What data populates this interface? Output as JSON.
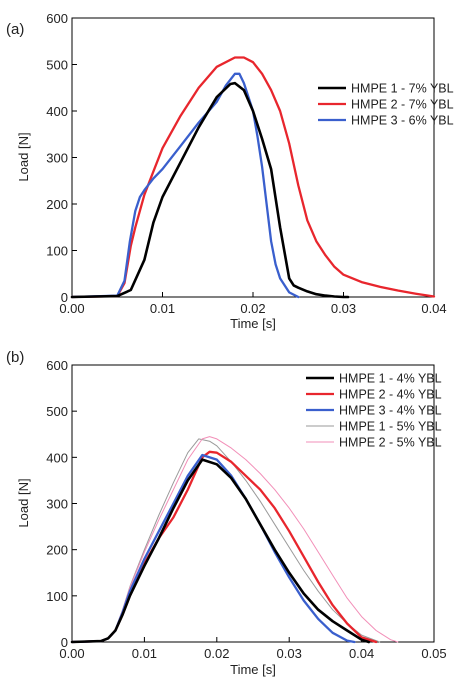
{
  "chart_data": [
    {
      "type": "line",
      "panel_label": "(a)",
      "xlabel": "Time [s]",
      "ylabel": "Load [N]",
      "xlim": [
        0,
        0.04
      ],
      "ylim": [
        0,
        600
      ],
      "xticks": [
        "0.00",
        "0.01",
        "0.02",
        "0.03",
        "0.04"
      ],
      "yticks": [
        "0",
        "100",
        "200",
        "300",
        "400",
        "500",
        "600"
      ],
      "grid": false,
      "legend_position": "right",
      "series": [
        {
          "name": "HMPE 1 - 7% YBL",
          "color": "#000000",
          "width": 2.6,
          "x": [
            0,
            0.005,
            0.0065,
            0.008,
            0.009,
            0.01,
            0.012,
            0.014,
            0.016,
            0.0175,
            0.018,
            0.019,
            0.02,
            0.021,
            0.022,
            0.023,
            0.024,
            0.0245,
            0.025,
            0.026,
            0.027,
            0.028,
            0.029,
            0.03,
            0.0305
          ],
          "y": [
            0,
            2,
            15,
            80,
            160,
            215,
            290,
            365,
            430,
            458,
            460,
            445,
            400,
            340,
            275,
            150,
            40,
            25,
            20,
            12,
            6,
            3,
            1,
            0,
            0
          ]
        },
        {
          "name": "HMPE 2 - 7% YBL",
          "color": "#e8262d",
          "width": 2.3,
          "x": [
            0,
            0.005,
            0.0058,
            0.0065,
            0.007,
            0.008,
            0.009,
            0.01,
            0.012,
            0.014,
            0.016,
            0.018,
            0.019,
            0.02,
            0.021,
            0.022,
            0.023,
            0.024,
            0.025,
            0.026,
            0.027,
            0.028,
            0.029,
            0.03,
            0.032,
            0.034,
            0.036,
            0.038,
            0.04
          ],
          "y": [
            0,
            2,
            30,
            110,
            150,
            220,
            270,
            320,
            390,
            450,
            495,
            515,
            515,
            505,
            480,
            445,
            400,
            330,
            240,
            165,
            120,
            90,
            65,
            48,
            32,
            22,
            14,
            7,
            1
          ]
        },
        {
          "name": "HMPE 3 - 6% YBL",
          "color": "#3a5fcd",
          "width": 2.3,
          "x": [
            0,
            0.005,
            0.0058,
            0.0064,
            0.007,
            0.0075,
            0.008,
            0.009,
            0.01,
            0.012,
            0.014,
            0.016,
            0.017,
            0.018,
            0.0185,
            0.019,
            0.02,
            0.0205,
            0.021,
            0.0215,
            0.022,
            0.0225,
            0.023,
            0.024,
            0.025
          ],
          "y": [
            0,
            3,
            35,
            120,
            185,
            215,
            230,
            255,
            275,
            325,
            375,
            420,
            455,
            480,
            480,
            460,
            400,
            345,
            280,
            200,
            120,
            70,
            40,
            10,
            0
          ]
        }
      ]
    },
    {
      "type": "line",
      "panel_label": "(b)",
      "xlabel": "Time [s]",
      "ylabel": "Load [N]",
      "xlim": [
        0,
        0.05
      ],
      "ylim": [
        0,
        600
      ],
      "xticks": [
        "0.00",
        "0.01",
        "0.02",
        "0.03",
        "0.04",
        "0.05"
      ],
      "yticks": [
        "0",
        "100",
        "200",
        "300",
        "400",
        "500",
        "600"
      ],
      "grid": false,
      "legend_position": "top-right",
      "series": [
        {
          "name": "HMPE 1 - 4% YBL",
          "color": "#000000",
          "width": 2.6,
          "x": [
            0,
            0.004,
            0.005,
            0.006,
            0.007,
            0.008,
            0.01,
            0.012,
            0.014,
            0.016,
            0.018,
            0.02,
            0.022,
            0.024,
            0.026,
            0.028,
            0.03,
            0.032,
            0.034,
            0.036,
            0.038,
            0.04,
            0.041
          ],
          "y": [
            0,
            2,
            8,
            25,
            60,
            100,
            165,
            225,
            290,
            350,
            395,
            385,
            355,
            310,
            255,
            200,
            150,
            105,
            70,
            45,
            25,
            5,
            0
          ]
        },
        {
          "name": "HMPE 2 - 4% YBL",
          "color": "#e8262d",
          "width": 2.3,
          "x": [
            0,
            0.004,
            0.005,
            0.006,
            0.007,
            0.008,
            0.01,
            0.012,
            0.014,
            0.016,
            0.018,
            0.019,
            0.02,
            0.022,
            0.024,
            0.026,
            0.028,
            0.03,
            0.032,
            0.034,
            0.036,
            0.038,
            0.04,
            0.042
          ],
          "y": [
            0,
            2,
            8,
            25,
            60,
            100,
            170,
            225,
            270,
            330,
            400,
            412,
            410,
            390,
            360,
            330,
            290,
            240,
            185,
            130,
            80,
            40,
            10,
            0
          ]
        },
        {
          "name": "HMPE 3 - 4% YBL",
          "color": "#3a5fcd",
          "width": 2.3,
          "x": [
            0,
            0.004,
            0.005,
            0.006,
            0.007,
            0.008,
            0.01,
            0.012,
            0.014,
            0.016,
            0.018,
            0.02,
            0.022,
            0.024,
            0.026,
            0.028,
            0.03,
            0.032,
            0.034,
            0.036,
            0.038,
            0.039
          ],
          "y": [
            0,
            2,
            8,
            25,
            65,
            110,
            180,
            240,
            300,
            360,
            405,
            395,
            360,
            310,
            255,
            195,
            140,
            90,
            50,
            20,
            3,
            0
          ]
        },
        {
          "name": "HMPE 1 - 5% YBL",
          "color": "#9a9a9a",
          "width": 1,
          "x": [
            0,
            0.004,
            0.005,
            0.006,
            0.007,
            0.008,
            0.01,
            0.012,
            0.014,
            0.016,
            0.0175,
            0.019,
            0.02,
            0.022,
            0.024,
            0.026,
            0.028,
            0.03,
            0.032,
            0.034,
            0.036,
            0.038,
            0.04,
            0.0425
          ],
          "y": [
            0,
            2,
            8,
            28,
            70,
            120,
            200,
            275,
            345,
            410,
            440,
            435,
            425,
            390,
            350,
            305,
            255,
            205,
            155,
            110,
            70,
            40,
            15,
            0
          ]
        },
        {
          "name": "HMPE 2 - 5% YBL",
          "color": "#f28fb8",
          "width": 1,
          "x": [
            0,
            0.004,
            0.005,
            0.006,
            0.007,
            0.008,
            0.01,
            0.012,
            0.014,
            0.016,
            0.018,
            0.019,
            0.02,
            0.022,
            0.024,
            0.026,
            0.028,
            0.03,
            0.032,
            0.034,
            0.036,
            0.038,
            0.04,
            0.042,
            0.044,
            0.045
          ],
          "y": [
            0,
            2,
            8,
            28,
            70,
            118,
            195,
            265,
            330,
            395,
            440,
            445,
            440,
            420,
            395,
            365,
            330,
            290,
            245,
            195,
            145,
            95,
            55,
            25,
            5,
            0
          ]
        }
      ]
    }
  ]
}
